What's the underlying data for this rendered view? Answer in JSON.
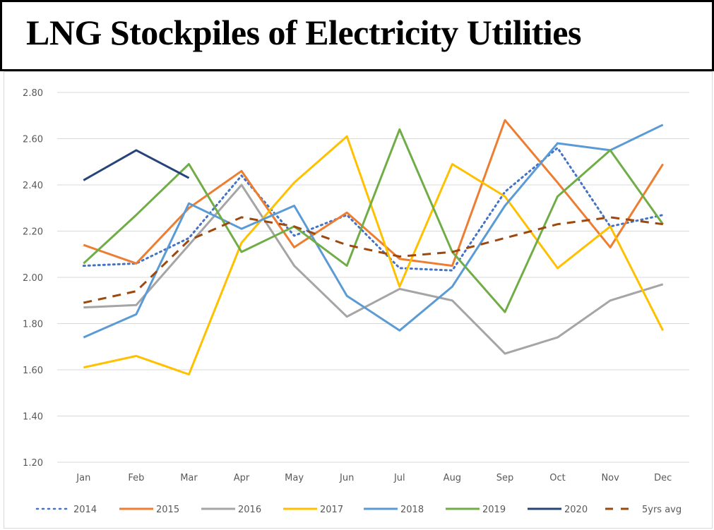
{
  "chart_data": {
    "type": "line",
    "title": "LNG Stockpiles of Electricity Utilities",
    "xlabel": "",
    "ylabel": "",
    "categories": [
      "Jan",
      "Feb",
      "Mar",
      "Apr",
      "May",
      "Jun",
      "Jul",
      "Aug",
      "Sep",
      "Oct",
      "Nov",
      "Dec"
    ],
    "ylim": [
      1.2,
      2.8
    ],
    "yticks": [
      "1.20",
      "1.40",
      "1.60",
      "1.80",
      "2.00",
      "2.20",
      "2.40",
      "2.60",
      "2.80"
    ],
    "grid": true,
    "legend_position": "bottom",
    "series": [
      {
        "name": "2014",
        "color": "#4472c4",
        "style": "dotted",
        "values": [
          2.05,
          2.06,
          2.17,
          2.44,
          2.18,
          2.27,
          2.04,
          2.03,
          2.37,
          2.56,
          2.22,
          2.27
        ]
      },
      {
        "name": "2015",
        "color": "#ed7d31",
        "style": "solid",
        "values": [
          2.14,
          2.06,
          2.3,
          2.46,
          2.13,
          2.28,
          2.08,
          2.05,
          2.68,
          2.41,
          2.13,
          2.49
        ]
      },
      {
        "name": "2016",
        "color": "#a5a5a5",
        "style": "solid",
        "values": [
          1.87,
          1.88,
          2.14,
          2.4,
          2.05,
          1.83,
          1.95,
          1.9,
          1.67,
          1.74,
          1.9,
          1.97
        ]
      },
      {
        "name": "2017",
        "color": "#ffc000",
        "style": "solid",
        "values": [
          1.61,
          1.66,
          1.58,
          2.15,
          2.41,
          2.61,
          1.96,
          2.49,
          2.35,
          2.04,
          2.22,
          1.77
        ]
      },
      {
        "name": "2018",
        "color": "#5b9bd5",
        "style": "solid",
        "values": [
          1.74,
          1.84,
          2.32,
          2.21,
          2.31,
          1.92,
          1.77,
          1.96,
          2.31,
          2.58,
          2.55,
          2.66
        ]
      },
      {
        "name": "2019",
        "color": "#70ad47",
        "style": "solid",
        "values": [
          2.06,
          2.27,
          2.49,
          2.11,
          2.22,
          2.05,
          2.64,
          2.11,
          1.85,
          2.35,
          2.55,
          2.23
        ]
      },
      {
        "name": "2020",
        "color": "#264478",
        "style": "solid",
        "values": [
          2.42,
          2.55,
          2.43,
          null,
          null,
          null,
          null,
          null,
          null,
          null,
          null,
          null
        ]
      },
      {
        "name": "5yrs avg",
        "color": "#9e480e",
        "style": "dashed",
        "values": [
          1.89,
          1.94,
          2.16,
          2.26,
          2.22,
          2.14,
          2.09,
          2.11,
          2.17,
          2.23,
          2.26,
          2.23
        ]
      }
    ]
  }
}
